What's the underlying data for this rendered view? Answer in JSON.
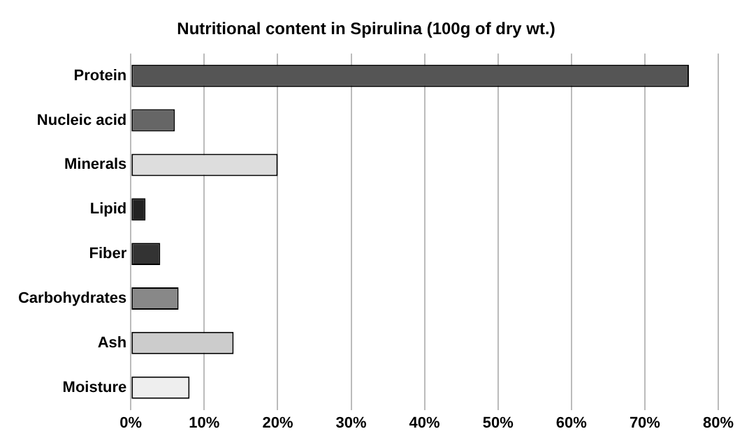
{
  "chart_data": {
    "type": "bar",
    "orientation": "horizontal",
    "title": "Nutritional content in Spirulina (100g of dry wt.)",
    "categories": [
      "Protein",
      "Nucleic acid",
      "Minerals",
      "Lipid",
      "Fiber",
      "Carbohydrates",
      "Ash",
      "Moisture"
    ],
    "values": [
      76,
      6,
      20,
      2,
      4,
      6.5,
      14,
      8
    ],
    "colors": [
      "#555555",
      "#666666",
      "#dddddd",
      "#222222",
      "#333333",
      "#888888",
      "#cccccc",
      "#eeeeee"
    ],
    "xlim": [
      0,
      80
    ],
    "xticks": [
      {
        "value": 0,
        "label": "0%"
      },
      {
        "value": 10,
        "label": "10%"
      },
      {
        "value": 20,
        "label": "20%"
      },
      {
        "value": 30,
        "label": "30%"
      },
      {
        "value": 40,
        "label": "40%"
      },
      {
        "value": 50,
        "label": "50%"
      },
      {
        "value": 60,
        "label": "60%"
      },
      {
        "value": 70,
        "label": "70%"
      },
      {
        "value": 80,
        "label": "80%"
      }
    ],
    "grid": "x"
  }
}
